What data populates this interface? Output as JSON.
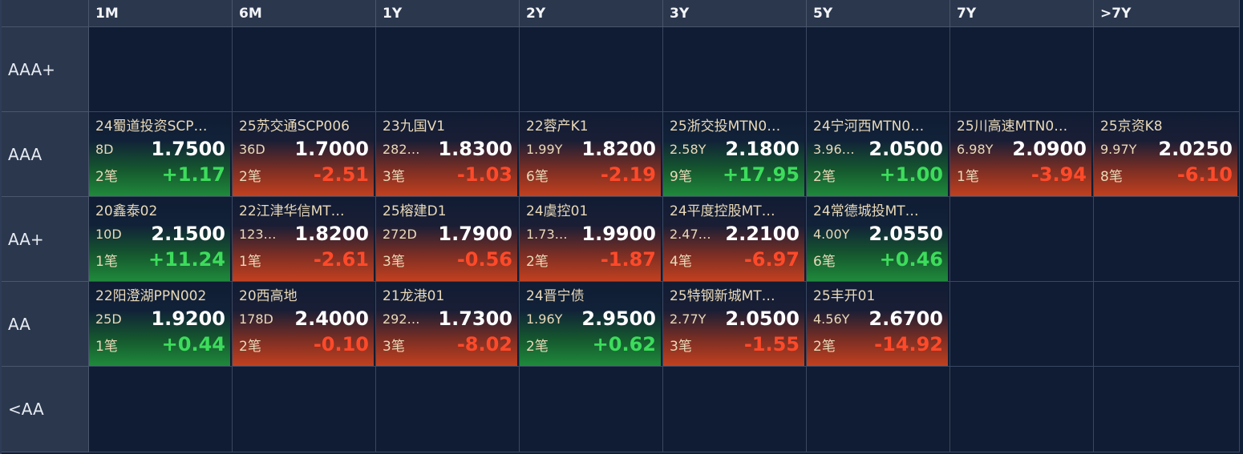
{
  "columns": [
    "1M",
    "6M",
    "1Y",
    "2Y",
    "3Y",
    "5Y",
    "7Y",
    ">7Y"
  ],
  "rows": [
    "AAA+",
    "AAA",
    "AA+",
    "AA",
    "<AA"
  ],
  "cells": [
    [
      null,
      null,
      null,
      null,
      null,
      null,
      null,
      null
    ],
    [
      {
        "name": "24蜀道投资SCP…",
        "term": "8D",
        "price": "1.7500",
        "count": "2笔",
        "change": "+1.17",
        "dir": "up"
      },
      {
        "name": "25苏交通SCP006",
        "term": "36D",
        "price": "1.7000",
        "count": "2笔",
        "change": "-2.51",
        "dir": "down"
      },
      {
        "name": "23九国V1",
        "term": "282…",
        "price": "1.8300",
        "count": "3笔",
        "change": "-1.03",
        "dir": "down"
      },
      {
        "name": "22蓉产K1",
        "term": "1.99Y",
        "price": "1.8200",
        "count": "6笔",
        "change": "-2.19",
        "dir": "down"
      },
      {
        "name": "25浙交投MTN0…",
        "term": "2.58Y",
        "price": "2.1800",
        "count": "9笔",
        "change": "+17.95",
        "dir": "up"
      },
      {
        "name": "24宁河西MTN0…",
        "term": "3.96…",
        "price": "2.0500",
        "count": "2笔",
        "change": "+1.00",
        "dir": "up"
      },
      {
        "name": "25川高速MTN0…",
        "term": "6.98Y",
        "price": "2.0900",
        "count": "1笔",
        "change": "-3.94",
        "dir": "down"
      },
      {
        "name": "25京资K8",
        "term": "9.97Y",
        "price": "2.0250",
        "count": "8笔",
        "change": "-6.10",
        "dir": "down"
      }
    ],
    [
      {
        "name": "20鑫泰02",
        "term": "10D",
        "price": "2.1500",
        "count": "1笔",
        "change": "+11.24",
        "dir": "up"
      },
      {
        "name": "22江津华信MT…",
        "term": "123…",
        "price": "1.8200",
        "count": "1笔",
        "change": "-2.61",
        "dir": "down"
      },
      {
        "name": "25榕建D1",
        "term": "272D",
        "price": "1.7900",
        "count": "3笔",
        "change": "-0.56",
        "dir": "down"
      },
      {
        "name": "24虞控01",
        "term": "1.73…",
        "price": "1.9900",
        "count": "2笔",
        "change": "-1.87",
        "dir": "down"
      },
      {
        "name": "24平度控股MT…",
        "term": "2.47…",
        "price": "2.2100",
        "count": "4笔",
        "change": "-6.97",
        "dir": "down"
      },
      {
        "name": "24常德城投MT…",
        "term": "4.00Y",
        "price": "2.0550",
        "count": "6笔",
        "change": "+0.46",
        "dir": "up"
      },
      null,
      null
    ],
    [
      {
        "name": "22阳澄湖PPN002",
        "term": "25D",
        "price": "1.9200",
        "count": "1笔",
        "change": "+0.44",
        "dir": "up"
      },
      {
        "name": "20西高地",
        "term": "178D",
        "price": "2.4000",
        "count": "2笔",
        "change": "-0.10",
        "dir": "down"
      },
      {
        "name": "21龙港01",
        "term": "292…",
        "price": "1.7300",
        "count": "3笔",
        "change": "-8.02",
        "dir": "down"
      },
      {
        "name": "24晋宁债",
        "term": "1.96Y",
        "price": "2.9500",
        "count": "2笔",
        "change": "+0.62",
        "dir": "up"
      },
      {
        "name": "25特钢新城MT…",
        "term": "2.77Y",
        "price": "2.0500",
        "count": "3笔",
        "change": "-1.55",
        "dir": "down"
      },
      {
        "name": "25丰开01",
        "term": "4.56Y",
        "price": "2.6700",
        "count": "2笔",
        "change": "-14.92",
        "dir": "down"
      },
      null,
      null
    ],
    [
      null,
      null,
      null,
      null,
      null,
      null,
      null,
      null
    ]
  ],
  "colors": {
    "up": "#3ddc5c",
    "down": "#ff4a2a",
    "header_bg": "#2b374d",
    "cell_bg": "#101c33"
  }
}
